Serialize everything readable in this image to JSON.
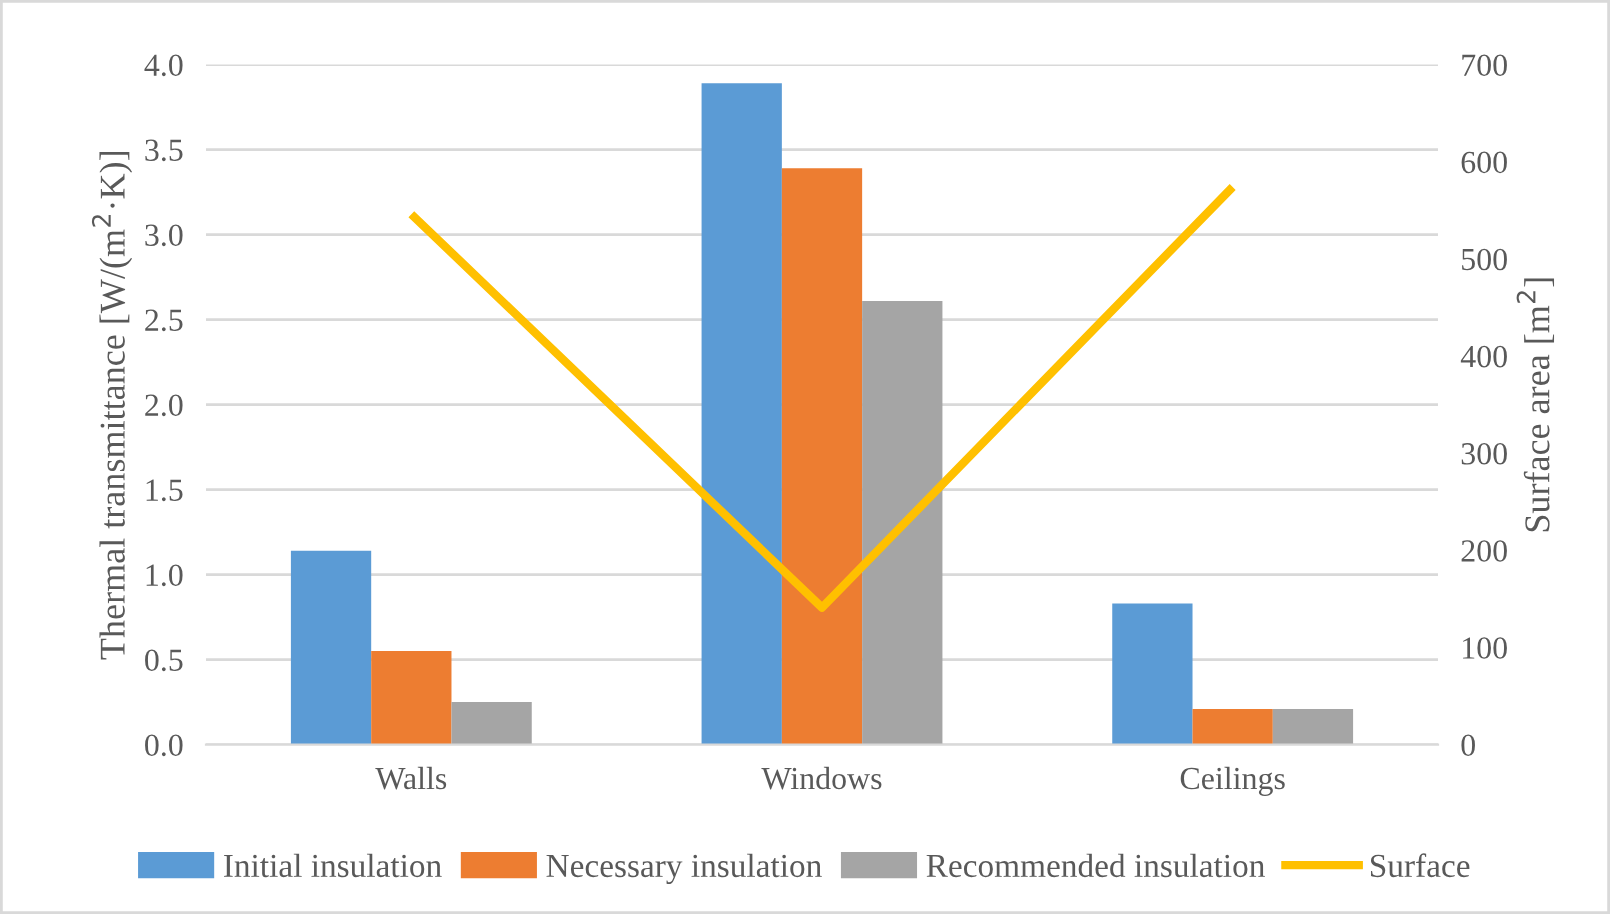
{
  "chart_data": {
    "type": "bar",
    "categories": [
      "Walls",
      "Windows",
      "Ceilings"
    ],
    "ylabel": "Thermal transmittance [W/(m$^{2}$·K)]",
    "y2label": "Surface area [m$^{2}$]",
    "series": [
      {
        "name": "Initial insulation",
        "color": "#5b9bd5",
        "values": [
          1.14,
          3.89,
          0.83
        ]
      },
      {
        "name": "Necessary insulation",
        "color": "#ed7d31",
        "values": [
          0.55,
          3.39,
          0.21
        ]
      },
      {
        "name": "Recommended insulation",
        "color": "#a5a5a5",
        "values": [
          0.25,
          2.61,
          0.21
        ]
      },
      {
        "name": "Surface",
        "color": "#ffc000",
        "type": "line",
        "axis": "y2",
        "values": [
          546,
          141,
          574
        ]
      }
    ],
    "ylim": [
      0,
      4
    ],
    "yticks": [
      {
        "value": 0,
        "label": "0.0"
      },
      {
        "value": 0.5,
        "label": "0.5"
      },
      {
        "value": 1,
        "label": "1.0"
      },
      {
        "value": 1.5,
        "label": "1.5"
      },
      {
        "value": 2,
        "label": "2.0"
      },
      {
        "value": 2.5,
        "label": "2.5"
      },
      {
        "value": 3,
        "label": "3.0"
      },
      {
        "value": 3.5,
        "label": "3.5"
      },
      {
        "value": 4,
        "label": "4.0"
      }
    ],
    "y2lim": [
      0,
      700
    ],
    "y2ticks": [
      0,
      100,
      200,
      300,
      400,
      500,
      600,
      700
    ],
    "grid": "y",
    "legend": "bottom"
  }
}
